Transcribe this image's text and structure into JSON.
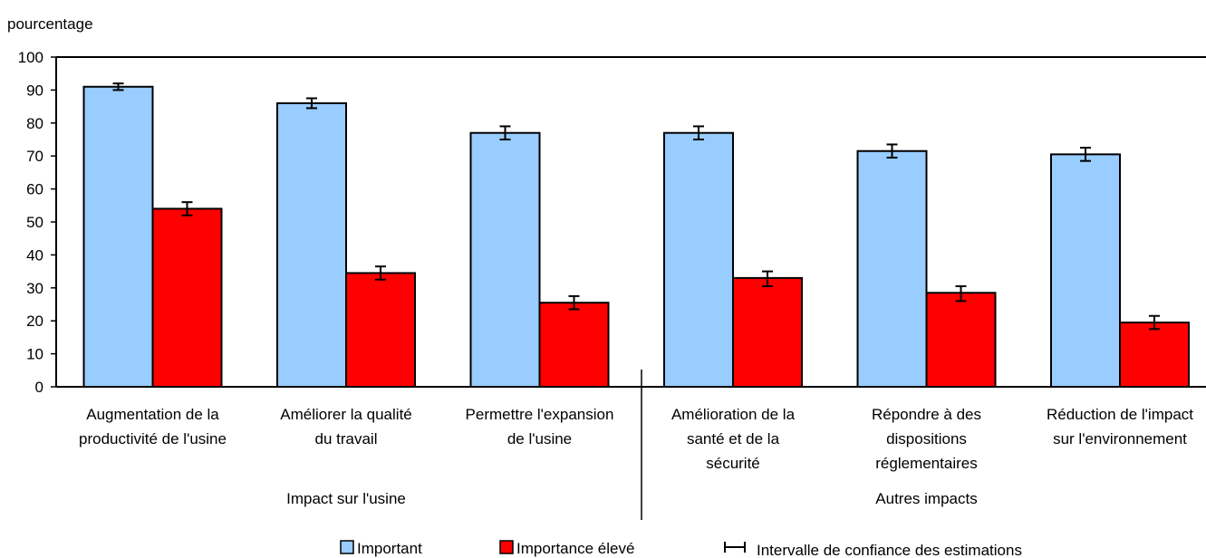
{
  "chart_data": {
    "type": "bar",
    "ylabel": "pourcentage",
    "ylim": [
      0,
      100
    ],
    "yticks": [
      "0",
      "10",
      "20",
      "30",
      "40",
      "50",
      "60",
      "70",
      "80",
      "90",
      "100"
    ],
    "categories": [
      [
        "Augmentation de la",
        "productivité de l'usine"
      ],
      [
        "Améliorer la qualité",
        "du travail"
      ],
      [
        "Permettre l'expansion",
        "de l'usine"
      ],
      [
        "Amélioration de la",
        "santé et de la",
        "sécurité"
      ],
      [
        "Répondre à des",
        "dispositions",
        "réglementaires"
      ],
      [
        "Réduction de l'impact",
        "sur l'environnement"
      ]
    ],
    "groups": [
      {
        "label": "Impact sur l'usine",
        "categories": [
          0,
          1,
          2
        ]
      },
      {
        "label": "Autres impacts",
        "categories": [
          3,
          4,
          5
        ]
      }
    ],
    "series": [
      {
        "name": "Important",
        "color": "#99ccff",
        "values": [
          91,
          86,
          77,
          77,
          71.5,
          70.5
        ],
        "ci": [
          [
            90,
            92
          ],
          [
            84.5,
            87.5
          ],
          [
            75,
            79
          ],
          [
            75,
            79
          ],
          [
            69.5,
            73.5
          ],
          [
            68.5,
            72.5
          ]
        ]
      },
      {
        "name": "Importance élevé",
        "color": "#ff0000",
        "values": [
          54,
          34.5,
          25.5,
          33,
          28.5,
          19.5
        ],
        "ci": [
          [
            52,
            56
          ],
          [
            32.5,
            36.5
          ],
          [
            23.5,
            27.5
          ],
          [
            30.5,
            35
          ],
          [
            26,
            30.5
          ],
          [
            17.5,
            21.5
          ]
        ]
      }
    ],
    "legend": {
      "position": "bottom",
      "ci_label": "Intervalle de confiance des estimations"
    }
  }
}
